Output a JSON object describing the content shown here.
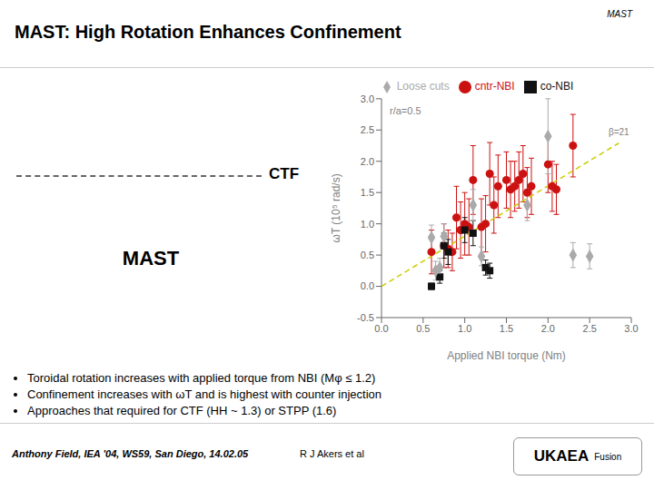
{
  "chart_data": {
    "type": "scatter",
    "title": "MAST: High Rotation Enhances Confinement",
    "x_label": "Applied NBI torque (Nm)",
    "y_label": "ωT (10⁵ rad/s)",
    "xlim": [
      0.0,
      3.0
    ],
    "ylim": [
      -0.5,
      3.0
    ],
    "xticks": [
      {
        "value": 0,
        "label": "0.0"
      },
      0.5,
      {
        "value": 1,
        "label": "1.0"
      },
      1.5,
      {
        "value": 2,
        "label": "2.0"
      },
      2.5,
      {
        "value": 3,
        "label": "3.0"
      }
    ],
    "yticks": [
      -0.5,
      {
        "value": 0,
        "label": "0.0"
      },
      0.5,
      {
        "value": 1,
        "label": "1.0"
      },
      1.5,
      {
        "value": 2,
        "label": "2.0"
      },
      2.5,
      {
        "value": 3,
        "label": "3.0"
      }
    ],
    "grid": false,
    "legend": "top",
    "annotations": [
      "r/a=0.5",
      "β=21",
      "CTF",
      "MAST",
      "Toroidal rotation increases with applied torque from NBI (Mφ ≤ 1.2)",
      "Confinement increases with ωT and is highest with counter injection",
      "Approaches that required for CTF (HH ~ 1.3) or STPP (1.6)",
      "Anthony Field, IEA '04, WS59, San Diego, 14.02.05",
      "R J Akers et al",
      "MAST",
      "UKAEA",
      "Fusion"
    ],
    "series": [
      {
        "name": "cntr-NBI",
        "color": "#cc1111",
        "marker": "circle",
        "x": [
          0.6,
          0.75,
          0.8,
          0.85,
          0.9,
          0.95,
          1.0,
          1.05,
          1.1,
          1.2,
          1.25,
          1.3,
          1.35,
          1.4,
          1.5,
          1.55,
          1.6,
          1.65,
          1.7,
          1.75,
          1.8,
          2.0,
          2.05,
          2.1,
          2.3
        ],
        "values": [
          0.55,
          0.65,
          0.6,
          0.55,
          1.1,
          0.9,
          1.0,
          0.95,
          1.7,
          0.95,
          1.0,
          1.8,
          1.3,
          1.6,
          1.7,
          1.55,
          1.6,
          1.7,
          1.8,
          1.5,
          1.6,
          1.95,
          1.6,
          1.55,
          2.25
        ],
        "yerr_lo": [
          0.35,
          0.35,
          0.3,
          0.3,
          0.5,
          0.45,
          0.5,
          0.45,
          0.55,
          0.45,
          0.45,
          0.5,
          0.45,
          0.5,
          0.45,
          0.45,
          0.4,
          0.45,
          0.45,
          0.4,
          0.45,
          0.45,
          0.4,
          0.4,
          0.5
        ],
        "yerr_hi": [
          0.35,
          0.35,
          0.3,
          0.3,
          0.5,
          0.45,
          0.5,
          0.45,
          0.55,
          0.45,
          0.45,
          0.5,
          0.45,
          0.5,
          0.45,
          0.45,
          0.4,
          0.45,
          0.45,
          0.4,
          0.45,
          0.45,
          0.4,
          0.4,
          0.5
        ]
      },
      {
        "name": "co-NBI",
        "color": "#111111",
        "marker": "square",
        "x": [
          0.6,
          0.7,
          0.75,
          0.8,
          1.0,
          1.1,
          1.25,
          1.3
        ],
        "values": [
          0.0,
          0.15,
          0.65,
          0.55,
          0.9,
          0.85,
          0.3,
          0.25
        ],
        "yerr": [
          0.05,
          0.1,
          0.2,
          0.2,
          0.2,
          0.2,
          0.12,
          0.12
        ]
      },
      {
        "name": "Loose cuts",
        "color": "#aaaaaa",
        "marker": "diamond",
        "x": [
          0.6,
          0.65,
          0.7,
          0.75,
          1.1,
          1.2,
          1.75,
          2.0,
          2.3,
          2.5
        ],
        "values": [
          0.78,
          0.25,
          0.3,
          0.8,
          1.3,
          0.48,
          1.3,
          2.4,
          0.5,
          0.48
        ],
        "yerr": [
          0.2,
          0.15,
          0.15,
          0.2,
          0.25,
          0.15,
          0.25,
          0.6,
          0.2,
          0.2
        ]
      },
      {
        "type": "line",
        "color": "#cccc00",
        "line_style": "dashed",
        "x": [
          0.0,
          2.85
        ],
        "values": [
          0.0,
          2.2901785714285716
        ]
      }
    ]
  }
}
